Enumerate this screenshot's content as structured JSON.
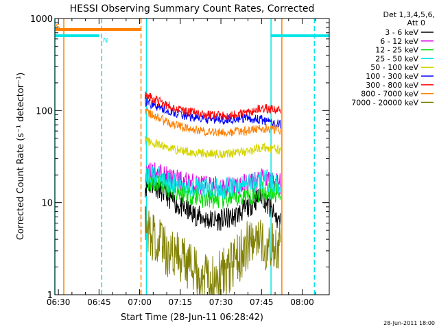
{
  "chart_data": {
    "type": "line",
    "title": "HESSI Observing Summary Count Rates, Corrected",
    "xlabel": "Start Time (28-Jun-11 06:28:42)",
    "ylabel": "Corrected Count Rate (s⁻¹ detector⁻¹)",
    "yscale": "log",
    "ylim": [
      1,
      1000
    ],
    "xlim": [
      "06:28:42",
      "08:10:00"
    ],
    "x_ticks": [
      "06:30",
      "06:45",
      "07:00",
      "07:15",
      "07:30",
      "07:45",
      "08:00"
    ],
    "y_ticks": [
      "1",
      "10",
      "100",
      "1000"
    ],
    "legend_header": [
      "Det 1,3,4,5,6,",
      "Att 0"
    ],
    "legend_position": "right",
    "timestamp": "28-Jun-2011 18:00",
    "flags": [
      {
        "label": "S",
        "color": "#ff7f00",
        "start": "06:28:42",
        "end": "07:00:30",
        "level": 760
      },
      {
        "label": "N",
        "color": "#00e6e6",
        "start": "06:28:42",
        "end": "06:45:00",
        "level": 650
      },
      {
        "label": "",
        "color": "#00e6e6",
        "start": "07:48:30",
        "end": "08:10:00",
        "level": 650
      }
    ],
    "markers": [
      {
        "time": "06:28:42",
        "color": "#00e6e6",
        "style": "solid"
      },
      {
        "time": "06:32:00",
        "color": "#ff7f00",
        "style": "solid"
      },
      {
        "time": "06:46:00",
        "color": "#00e6e6",
        "style": "dashed"
      },
      {
        "time": "07:00:30",
        "color": "#ff7f00",
        "style": "dashed"
      },
      {
        "time": "07:02:30",
        "color": "#00e6e6",
        "style": "solid"
      },
      {
        "time": "07:48:30",
        "color": "#00e6e6",
        "style": "solid"
      },
      {
        "time": "07:52:30",
        "color": "#ff7f00",
        "style": "solid"
      },
      {
        "time": "08:04:30",
        "color": "#00e6e6",
        "style": "dashed"
      }
    ],
    "x": [
      "07:02",
      "07:05",
      "07:10",
      "07:15",
      "07:20",
      "07:25",
      "07:30",
      "07:35",
      "07:40",
      "07:45",
      "07:50",
      "07:52"
    ],
    "series": [
      {
        "name": "3 - 6 keV",
        "color": "#000000",
        "values": [
          15,
          16,
          12,
          9,
          7.5,
          6.5,
          6.5,
          7,
          9,
          12,
          7,
          6
        ]
      },
      {
        "name": "6 - 12 keV",
        "color": "#e000e0",
        "values": [
          21,
          22,
          19,
          17,
          16,
          15,
          15,
          15,
          16,
          18,
          17,
          16
        ]
      },
      {
        "name": "12 - 25 keV",
        "color": "#00dd00",
        "values": [
          18,
          17,
          15,
          13,
          12,
          11,
          11,
          11,
          12,
          13,
          13,
          13
        ]
      },
      {
        "name": "25 - 50 keV",
        "color": "#00e6e6",
        "values": [
          20,
          20,
          17,
          16,
          15,
          14,
          14,
          15,
          16,
          18,
          16,
          16
        ]
      },
      {
        "name": "50 - 100 keV",
        "color": "#d4d400",
        "values": [
          48,
          44,
          40,
          37,
          35,
          34,
          34,
          35,
          36,
          40,
          38,
          37
        ]
      },
      {
        "name": "100 - 300 keV",
        "color": "#0000ff",
        "values": [
          125,
          115,
          100,
          90,
          84,
          80,
          80,
          81,
          82,
          79,
          72,
          71
        ]
      },
      {
        "name": "300 - 800 keV",
        "color": "#ff0000",
        "values": [
          145,
          135,
          115,
          102,
          95,
          90,
          88,
          90,
          96,
          106,
          103,
          102
        ]
      },
      {
        "name": "800 - 7000 keV",
        "color": "#ff7f00",
        "values": [
          100,
          88,
          75,
          67,
          62,
          59,
          58,
          59,
          60,
          64,
          63,
          62
        ]
      },
      {
        "name": "7000 - 20000 keV",
        "color": "#808000",
        "values": [
          5.5,
          4,
          3,
          2.5,
          1.8,
          1.6,
          1.6,
          2.2,
          3.5,
          3.5,
          3.5,
          3.5
        ]
      }
    ]
  }
}
